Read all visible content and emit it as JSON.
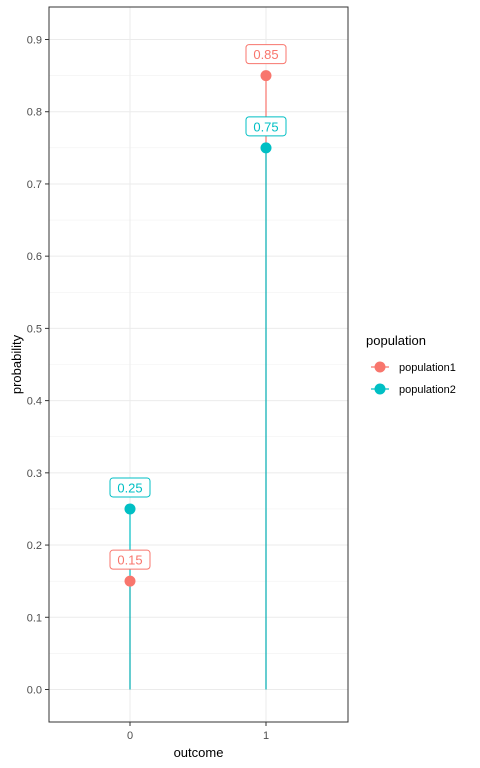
{
  "chart_data": {
    "type": "scatter",
    "xlabel": "outcome",
    "ylabel": "probability",
    "categories": [
      "0",
      "1"
    ],
    "y_ticks": [
      "0.0",
      "0.1",
      "0.2",
      "0.3",
      "0.4",
      "0.5",
      "0.6",
      "0.7",
      "0.8",
      "0.9"
    ],
    "ylim": [
      -0.045,
      0.945
    ],
    "grid": true,
    "legend": {
      "title": "population",
      "position": "right"
    },
    "series": [
      {
        "name": "population1",
        "color": "#F8766D",
        "values": [
          0.15,
          0.85
        ],
        "labels": [
          "0.15",
          "0.85"
        ]
      },
      {
        "name": "population2",
        "color": "#00BFC4",
        "values": [
          0.25,
          0.75
        ],
        "labels": [
          "0.25",
          "0.75"
        ]
      }
    ]
  }
}
